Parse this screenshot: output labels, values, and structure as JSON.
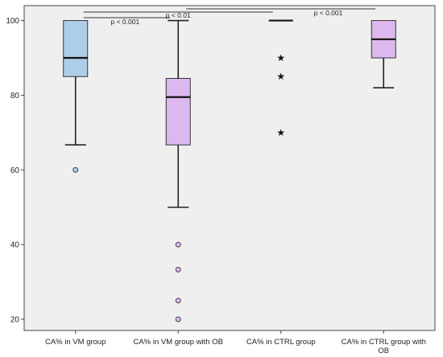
{
  "chart_data": {
    "type": "boxplot",
    "title": "",
    "xlabel": "",
    "ylabel": "",
    "ylim": [
      17,
      104
    ],
    "yticks": [
      20,
      40,
      60,
      80,
      100
    ],
    "grid": false,
    "categories": [
      [
        "CA% in VM group"
      ],
      [
        "CA% in VM group with OB"
      ],
      [
        "CA% in CTRL group"
      ],
      [
        "CA% in CTRL group with",
        "OB"
      ]
    ],
    "boxes": [
      {
        "whisker_low": 66.7,
        "q1": 85,
        "median": 90,
        "q3": 100,
        "whisker_high": 100,
        "outliers": [
          60
        ],
        "extremes": [],
        "color": "#aecde9"
      },
      {
        "whisker_low": 50,
        "q1": 66.7,
        "median": 79.5,
        "q3": 84.5,
        "whisker_high": 100,
        "outliers": [
          40,
          33.3,
          25,
          20
        ],
        "extremes": [],
        "color": "#dcb8ef"
      },
      {
        "whisker_low": 100,
        "q1": 100,
        "median": 100,
        "q3": 100,
        "whisker_high": 100,
        "outliers": [],
        "extremes": [
          90,
          85,
          70
        ],
        "color": "#aecde9"
      },
      {
        "whisker_low": 82,
        "q1": 90,
        "median": 95,
        "q3": 100,
        "whisker_high": 100,
        "outliers": [],
        "extremes": [],
        "color": "#dcb8ef"
      }
    ],
    "significance": [
      {
        "from": 0,
        "to": 1,
        "label": "p < 0.001"
      },
      {
        "from": 0,
        "to": 2,
        "label": "p < 0.01"
      },
      {
        "from": 1,
        "to": 3,
        "label": "p < 0.001"
      }
    ]
  },
  "colors": {
    "background": "#efefef",
    "axis": "#444444",
    "box_edge": "#222222",
    "outlier_fill_1": "#aecde9",
    "outlier_fill_2": "#dcb8ef"
  }
}
